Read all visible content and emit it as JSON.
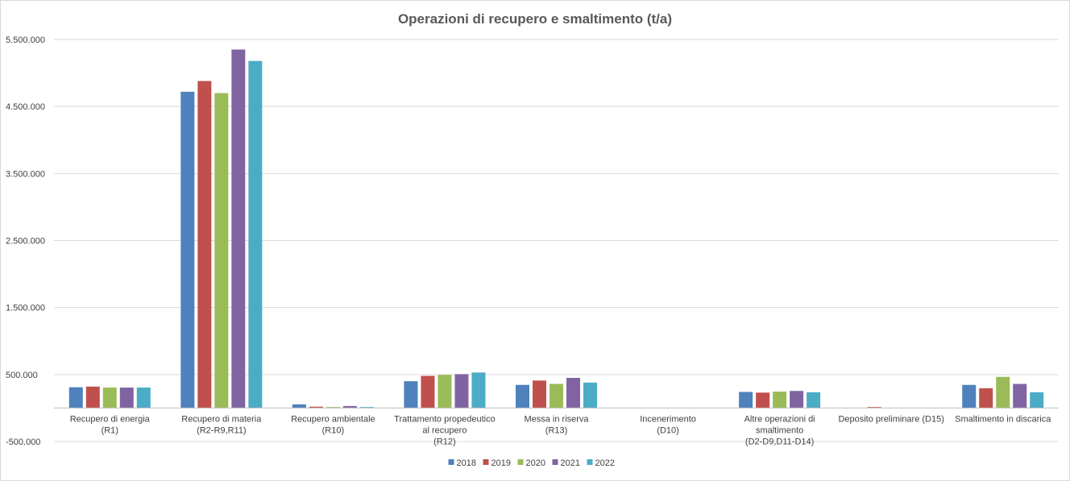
{
  "chart_data": {
    "type": "bar",
    "title": "Operazioni di recupero e smaltimento (t/a)",
    "xlabel": "",
    "ylabel": "",
    "ylim": [
      -500000,
      5500000
    ],
    "yticks": [
      "-500.000",
      "500.000",
      "1.500.000",
      "2.500.000",
      "3.500.000",
      "4.500.000",
      "5.500.000"
    ],
    "ytick_values": [
      -500000,
      500000,
      1500000,
      2500000,
      3500000,
      4500000,
      5500000
    ],
    "grid": true,
    "legend_position": "bottom",
    "categories": [
      [
        "Recupero di energia",
        "(R1)"
      ],
      [
        "Recupero di materia",
        "(R2-R9,R11)"
      ],
      [
        "Recupero ambientale",
        "(R10)"
      ],
      [
        "Trattamento propedeutico",
        "al recupero",
        "(R12)"
      ],
      [
        "Messa in riserva",
        "(R13)"
      ],
      [
        "Incenerimento",
        "(D10)"
      ],
      [
        "Altre operazioni di",
        "smaltimento",
        "(D2-D9,D11-D14)"
      ],
      [
        "Deposito preliminare (D15)"
      ],
      [
        "Smaltimento in discarica"
      ]
    ],
    "series": [
      {
        "name": "2018",
        "color": "#4f81bd",
        "values": [
          310000,
          4720000,
          55000,
          400000,
          345000,
          0,
          240000,
          0,
          345000
        ]
      },
      {
        "name": "2019",
        "color": "#c0504d",
        "values": [
          320000,
          4880000,
          20000,
          480000,
          410000,
          0,
          230000,
          15000,
          295000
        ]
      },
      {
        "name": "2020",
        "color": "#9bbb59",
        "values": [
          305000,
          4700000,
          15000,
          495000,
          360000,
          0,
          245000,
          0,
          465000
        ]
      },
      {
        "name": "2021",
        "color": "#8064a2",
        "values": [
          305000,
          5350000,
          30000,
          505000,
          450000,
          0,
          255000,
          0,
          360000
        ]
      },
      {
        "name": "2022",
        "color": "#4bacc6",
        "values": [
          305000,
          5180000,
          15000,
          530000,
          380000,
          0,
          235000,
          0,
          235000
        ]
      }
    ]
  }
}
